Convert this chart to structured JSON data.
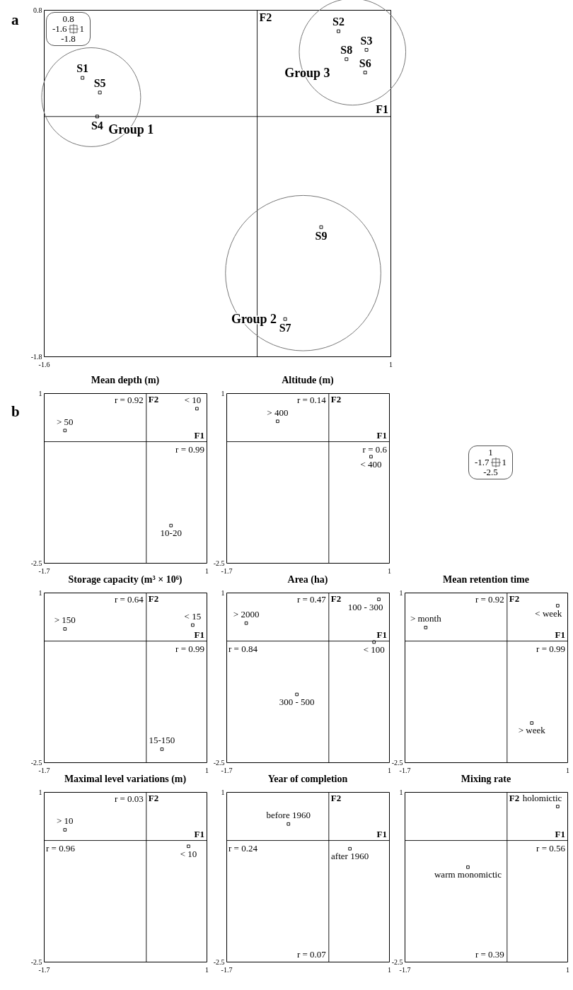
{
  "chart_data": [
    {
      "type": "scatter",
      "title": "a",
      "xlim": [
        -1.6,
        1
      ],
      "ylim": [
        -1.8,
        0.8
      ],
      "xticks": [
        -1.6,
        1
      ],
      "yticks": [
        -1.8,
        0.8
      ],
      "marker": "square",
      "series": [
        {
          "name": "Group 1",
          "color": "#000000",
          "x": [
            -1.31,
            -1.18,
            -1.2
          ],
          "values": [
            0.29,
            0.18,
            0
          ]
        },
        {
          "name": "Group 2",
          "color": "#000000",
          "x": [
            0.48,
            0.21
          ],
          "values": [
            -0.83,
            -1.52
          ]
        },
        {
          "name": "Group 3",
          "color": "#000000",
          "x": [
            0.61,
            0.82,
            0.67,
            0.81
          ],
          "values": [
            0.64,
            0.5,
            0.43,
            0.33
          ]
        }
      ],
      "ref_lines": [
        {
          "axis": "y",
          "value": 0,
          "label": "F1"
        },
        {
          "axis": "x",
          "value": 0,
          "label": "F2"
        }
      ],
      "annotations": [
        "0.8",
        "-1.6",
        "1",
        "-1.8",
        {
          "text": "S1",
          "x": -1.31,
          "y": 0.29
        },
        {
          "text": "S5",
          "x": -1.18,
          "y": 0.18
        },
        {
          "text": "S4",
          "x": -1.2,
          "y": 0
        },
        {
          "text": "S9",
          "x": 0.48,
          "y": -0.83
        },
        {
          "text": "S7",
          "x": 0.21,
          "y": -1.52
        },
        {
          "text": "S2",
          "x": 0.61,
          "y": 0.64
        },
        {
          "text": "S3",
          "x": 0.82,
          "y": 0.5
        },
        {
          "text": "S8",
          "x": 0.67,
          "y": 0.43
        },
        {
          "text": "S6",
          "x": 0.81,
          "y": 0.33
        }
      ]
    },
    {
      "type": "scatter",
      "title": "Mean depth (m)",
      "xlim": [
        -1.7,
        1
      ],
      "ylim": [
        -2.5,
        1
      ],
      "xticks": [
        -1.7,
        1
      ],
      "yticks": [
        -2.5,
        1
      ],
      "marker": "square",
      "color": "#000000",
      "x": [
        -1.35,
        0.84,
        0.41
      ],
      "values": [
        0.23,
        0.68,
        -1.73
      ],
      "ref_lines": [
        {
          "axis": "y",
          "value": 0,
          "label": "F1"
        },
        {
          "axis": "x",
          "value": 0,
          "label": "F2"
        }
      ],
      "annotations": [
        "b",
        "1",
        "-1.7",
        "1",
        "-2.5",
        {
          "text": "> 50",
          "x": -1.35,
          "y": 0.23
        },
        {
          "text": "< 10",
          "x": 0.84,
          "y": 0.68
        },
        {
          "text": "10-20",
          "x": 0.41,
          "y": -1.73
        },
        {
          "text": "r = 0.92",
          "x": 0,
          "y": 1
        },
        {
          "text": "r = 0.99",
          "x": 1,
          "y": 0
        }
      ]
    },
    {
      "type": "scatter",
      "title": "Altitude (m)",
      "xlim": [
        -1.7,
        1
      ],
      "ylim": [
        -2.5,
        1
      ],
      "xticks": [
        -1.7,
        1
      ],
      "yticks": [
        -2.5,
        1
      ],
      "marker": "square",
      "color": "#000000",
      "x": [
        -0.85,
        0.7
      ],
      "values": [
        0.42,
        -0.31
      ],
      "ref_lines": [
        {
          "axis": "y",
          "value": 0,
          "label": "F1"
        },
        {
          "axis": "x",
          "value": 0,
          "label": "F2"
        }
      ],
      "annotations": [
        {
          "text": "> 400",
          "x": -0.85,
          "y": 0.42
        },
        {
          "text": "< 400",
          "x": 0.7,
          "y": -0.31
        },
        {
          "text": "r = 0.14",
          "x": 0,
          "y": 1
        },
        {
          "text": "r = 0.6",
          "x": 1,
          "y": 0
        }
      ]
    },
    {
      "type": "scatter",
      "title": "Storage capacity (m³ × 10⁶)",
      "xlim": [
        -1.7,
        1
      ],
      "ylim": [
        -2.5,
        1
      ],
      "xticks": [
        -1.7,
        1
      ],
      "yticks": [
        -2.5,
        1
      ],
      "marker": "square",
      "color": "#000000",
      "x": [
        -1.35,
        0.77,
        0.26
      ],
      "values": [
        0.25,
        0.33,
        -2.23
      ],
      "ref_lines": [
        {
          "axis": "y",
          "value": 0,
          "label": "F1"
        },
        {
          "axis": "x",
          "value": 0,
          "label": "F2"
        }
      ],
      "annotations": [
        {
          "text": "> 150",
          "x": -1.35,
          "y": 0.25
        },
        {
          "text": "< 15",
          "x": 0.77,
          "y": 0.33
        },
        {
          "text": "15-150",
          "x": 0.26,
          "y": -2.23
        },
        {
          "text": "r = 0.64",
          "x": 0,
          "y": 1
        },
        {
          "text": "r = 0.99",
          "x": 1,
          "y": 0
        }
      ]
    },
    {
      "type": "scatter",
      "title": "Area (ha)",
      "xlim": [
        -1.7,
        1
      ],
      "ylim": [
        -2.5,
        1
      ],
      "xticks": [
        -1.7,
        1
      ],
      "yticks": [
        -2.5,
        1
      ],
      "marker": "square",
      "color": "#000000",
      "x": [
        -1.37,
        0.83,
        0.75,
        -0.53
      ],
      "values": [
        0.37,
        0.86,
        -0.02,
        -1.1
      ],
      "ref_lines": [
        {
          "axis": "y",
          "value": 0,
          "label": "F1"
        },
        {
          "axis": "x",
          "value": 0,
          "label": "F2"
        }
      ],
      "annotations": [
        {
          "text": "> 2000",
          "x": -1.37,
          "y": 0.37
        },
        {
          "text": "100 - 300",
          "x": 0.83,
          "y": 0.86
        },
        {
          "text": "< 100",
          "x": 0.75,
          "y": -0.02
        },
        {
          "text": "300 - 500",
          "x": -0.53,
          "y": -1.1
        },
        {
          "text": "r = 0.47",
          "x": 0,
          "y": 1
        },
        {
          "text": "r = 0.84",
          "x": -1.7,
          "y": 0
        }
      ]
    },
    {
      "type": "scatter",
      "title": "Mean retention time",
      "xlim": [
        -1.7,
        1
      ],
      "ylim": [
        -2.5,
        1
      ],
      "xticks": [
        -1.7,
        1
      ],
      "yticks": [
        -2.5,
        1
      ],
      "marker": "square",
      "color": "#000000",
      "x": [
        -1.35,
        0.84,
        0.41
      ],
      "values": [
        0.28,
        0.73,
        -1.69
      ],
      "ref_lines": [
        {
          "axis": "y",
          "value": 0,
          "label": "F1"
        },
        {
          "axis": "x",
          "value": 0,
          "label": "F2"
        }
      ],
      "annotations": [
        {
          "text": "> month",
          "x": -1.35,
          "y": 0.28
        },
        {
          "text": "< week",
          "x": 0.84,
          "y": 0.73
        },
        {
          "text": "> week",
          "x": 0.41,
          "y": -1.69
        },
        {
          "text": "r = 0.92",
          "x": 0,
          "y": 1
        },
        {
          "text": "r = 0.99",
          "x": 1,
          "y": 0
        }
      ]
    },
    {
      "type": "scatter",
      "title": "Maximal level variations (m)",
      "xlim": [
        -1.7,
        1
      ],
      "ylim": [
        -2.5,
        1
      ],
      "xticks": [
        -1.7,
        1
      ],
      "yticks": [
        -2.5,
        1
      ],
      "marker": "square",
      "color": "#000000",
      "x": [
        -1.35,
        0.7
      ],
      "values": [
        0.22,
        -0.12
      ],
      "ref_lines": [
        {
          "axis": "y",
          "value": 0,
          "label": "F1"
        },
        {
          "axis": "x",
          "value": 0,
          "label": "F2"
        }
      ],
      "annotations": [
        {
          "text": "> 10",
          "x": -1.35,
          "y": 0.22
        },
        {
          "text": "< 10",
          "x": 0.7,
          "y": -0.12
        },
        {
          "text": "r = 0.03",
          "x": 0,
          "y": 1
        },
        {
          "text": "r = 0.96",
          "x": -1.7,
          "y": 0
        }
      ]
    },
    {
      "type": "scatter",
      "title": "Year of completion",
      "xlim": [
        -1.7,
        1
      ],
      "ylim": [
        -2.5,
        1
      ],
      "xticks": [
        -1.7,
        1
      ],
      "yticks": [
        -2.5,
        1
      ],
      "marker": "square",
      "color": "#000000",
      "x": [
        -0.67,
        0.35
      ],
      "values": [
        0.34,
        -0.17
      ],
      "ref_lines": [
        {
          "axis": "y",
          "value": 0,
          "label": "F1"
        },
        {
          "axis": "x",
          "value": 0,
          "label": "F2"
        }
      ],
      "annotations": [
        {
          "text": "before 1960",
          "x": -0.67,
          "y": 0.34
        },
        {
          "text": "after 1960",
          "x": 0.35,
          "y": -0.17
        },
        {
          "text": "r = 0.24",
          "x": -1.7,
          "y": 0
        },
        {
          "text": "r = 0.07",
          "x": 0,
          "y": -2.5
        }
      ]
    },
    {
      "type": "scatter",
      "title": "Mixing rate",
      "xlim": [
        -1.7,
        1
      ],
      "ylim": [
        -2.5,
        1
      ],
      "xticks": [
        -1.7,
        1
      ],
      "yticks": [
        -2.5,
        1
      ],
      "marker": "square",
      "color": "#000000",
      "x": [
        0.84,
        -0.65
      ],
      "values": [
        0.7,
        -0.55
      ],
      "ref_lines": [
        {
          "axis": "y",
          "value": 0,
          "label": "F1"
        },
        {
          "axis": "x",
          "value": 0,
          "label": "F2"
        }
      ],
      "annotations": [
        {
          "text": "holomictic",
          "x": 0.84,
          "y": 0.7
        },
        {
          "text": "warm monomictic",
          "x": -0.65,
          "y": -0.55
        },
        {
          "text": "r = 0.56",
          "x": 1,
          "y": 0
        },
        {
          "text": "r = 0.39",
          "x": 0,
          "y": -2.5
        }
      ]
    }
  ]
}
